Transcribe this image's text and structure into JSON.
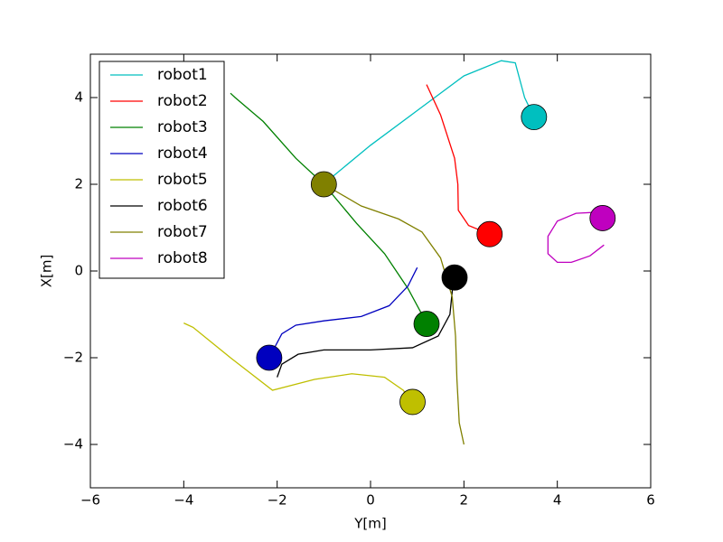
{
  "chart_data": {
    "type": "line",
    "xlabel": "Y[m]",
    "ylabel": "X[m]",
    "xlim": [
      -6,
      6
    ],
    "ylim": [
      -5,
      5
    ],
    "xticks": [
      {
        "value": -6,
        "label": "−6"
      },
      {
        "value": -4,
        "label": "−4"
      },
      {
        "value": -2,
        "label": "−2"
      },
      0,
      2,
      4,
      6
    ],
    "yticks": [
      {
        "value": -4,
        "label": "−4"
      },
      {
        "value": -2,
        "label": "−2"
      },
      0,
      2,
      4
    ],
    "legend": "upper left",
    "series": [
      {
        "name": "robot1",
        "color": "#00bfbf",
        "x": [
          -0.9,
          0,
          1,
          2,
          2.8,
          3.1,
          3.3,
          3.5
        ],
        "values": [
          2.1,
          2.9,
          3.7,
          4.5,
          4.85,
          4.8,
          4.0,
          3.55
        ],
        "marker_x": 3.5,
        "marker_y": 3.55
      },
      {
        "name": "robot2",
        "color": "#ff0000",
        "x": [
          1.2,
          1.5,
          1.8,
          1.87,
          1.88,
          2.1,
          2.55
        ],
        "values": [
          4.3,
          3.6,
          2.6,
          2.0,
          1.4,
          1.05,
          0.85
        ],
        "marker_x": 2.55,
        "marker_y": 0.85
      },
      {
        "name": "robot3",
        "color": "#008000",
        "x": [
          -3,
          -2.9,
          -2.3,
          -1.6,
          -1,
          -0.3,
          0.3,
          0.8,
          1.2
        ],
        "values": [
          4.1,
          4.0,
          3.45,
          2.6,
          2,
          1.1,
          0.4,
          -0.4,
          -1.2
        ],
        "marker_x": 1.2,
        "marker_y": -1.22
      },
      {
        "name": "robot4",
        "color": "#0000bf",
        "x": [
          -2.17,
          -1.9,
          -1.6,
          -1,
          -0.2,
          0.4,
          0.8,
          1.0
        ],
        "values": [
          -2,
          -1.45,
          -1.25,
          -1.15,
          -1.05,
          -0.8,
          -0.35,
          0.08
        ],
        "marker_x": -2.17,
        "marker_y": -2
      },
      {
        "name": "robot5",
        "color": "#bfbf00",
        "x": [
          -4,
          -3.8,
          -3,
          -2.1,
          -1.2,
          -0.4,
          0.3,
          0.7,
          0.9
        ],
        "values": [
          -1.2,
          -1.3,
          -2.0,
          -2.75,
          -2.5,
          -2.37,
          -2.45,
          -2.75,
          -3.02
        ],
        "marker_x": 0.9,
        "marker_y": -3.02
      },
      {
        "name": "robot6",
        "color": "#000000",
        "x": [
          -2,
          -1.9,
          -1.55,
          -1,
          0,
          0.9,
          1.45,
          1.7,
          1.78
        ],
        "values": [
          -2.45,
          -2.15,
          -1.92,
          -1.82,
          -1.82,
          -1.77,
          -1.5,
          -1.0,
          -0.15
        ],
        "marker_x": 1.8,
        "marker_y": -0.15
      },
      {
        "name": "robot7",
        "color": "#808000",
        "x": [
          -1,
          -0.2,
          0.6,
          1.1,
          1.5,
          1.75,
          1.82,
          1.85,
          1.9,
          2
        ],
        "values": [
          2,
          1.5,
          1.2,
          0.9,
          0.3,
          -0.6,
          -1.5,
          -2.5,
          -3.5,
          -4
        ],
        "marker_x": -1,
        "marker_y": 2
      },
      {
        "name": "robot8",
        "color": "#bf00bf",
        "x": [
          5,
          4.7,
          4.3,
          4.0,
          3.8,
          3.8,
          4.0,
          4.4,
          4.75,
          4.97
        ],
        "values": [
          0.6,
          0.35,
          0.2,
          0.2,
          0.4,
          0.8,
          1.15,
          1.33,
          1.35,
          1.23
        ],
        "marker_x": 4.97,
        "marker_y": 1.22
      }
    ]
  }
}
